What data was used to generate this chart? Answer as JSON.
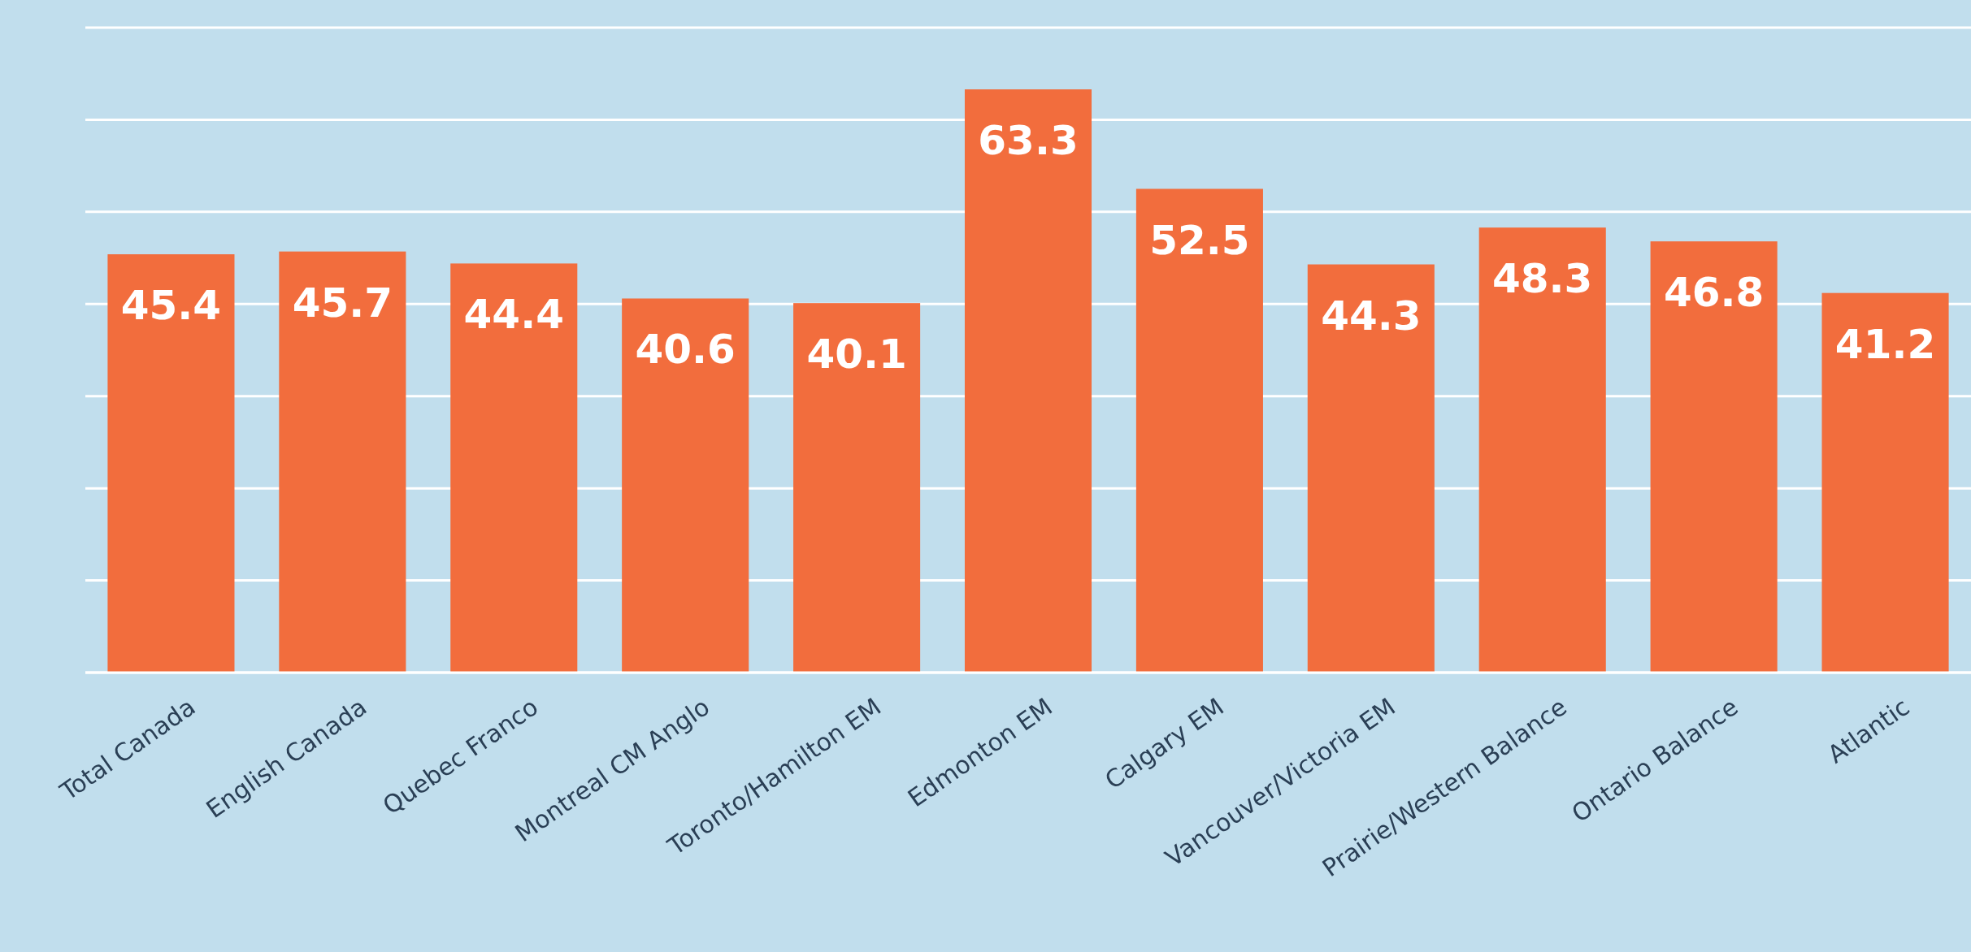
{
  "chart_data": {
    "type": "bar",
    "categories": [
      "Total Canada",
      "English Canada",
      "Quebec Franco",
      "Montreal CM Anglo",
      "Toronto/Hamilton EM",
      "Edmonton EM",
      "Calgary EM",
      "Vancouver/Victoria EM",
      "Prairie/Western Balance",
      "Ontario Balance",
      "Atlantic"
    ],
    "values": [
      45.4,
      45.7,
      44.4,
      40.6,
      40.1,
      63.3,
      52.5,
      44.3,
      48.3,
      46.8,
      41.2
    ],
    "color": "#f26d3d",
    "ylim": [
      0,
      70
    ],
    "yticks": [
      {
        "value": 0,
        "label": null
      },
      {
        "value": 10,
        "label": null
      },
      {
        "value": 20,
        "label": null
      },
      {
        "value": 30,
        "label": null
      },
      {
        "value": 40,
        "label": null
      },
      {
        "value": 50,
        "label": null
      },
      {
        "value": 60,
        "label": null
      },
      {
        "value": 70,
        "label": null
      }
    ],
    "grid": "y",
    "tick_labels": "x",
    "data_labels": true
  }
}
